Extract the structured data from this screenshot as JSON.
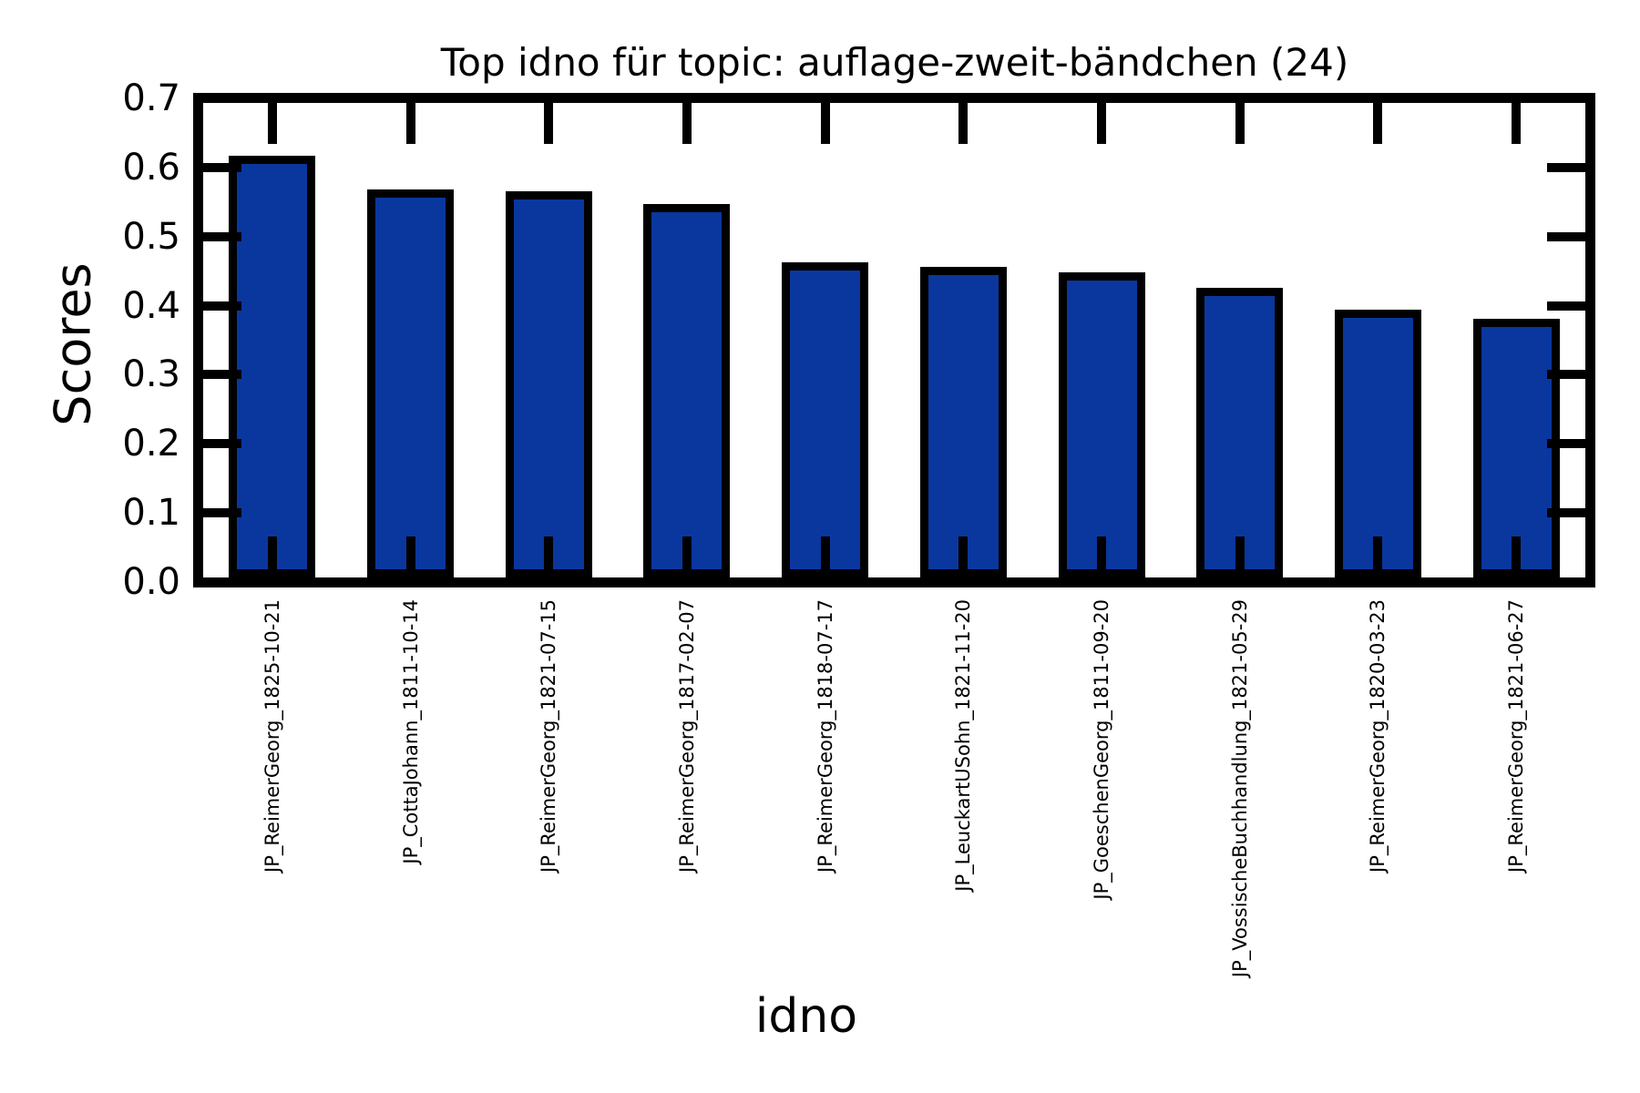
{
  "chart_data": {
    "type": "bar",
    "title": "Top idno für topic: auflage-zweit-bändchen (24)",
    "xlabel": "idno",
    "ylabel": "Scores",
    "ylim": [
      0.0,
      0.7
    ],
    "yticks": [
      0.0,
      0.1,
      0.2,
      0.3,
      0.4,
      0.5,
      0.6,
      0.7
    ],
    "grid": false,
    "legend": "none",
    "bar_color": "#0a379e",
    "bar_edge_color": "#000000",
    "tick_direction": "in",
    "categories": [
      "JP_ReimerGeorg_1825-10-21",
      "JP_CottaJohann_1811-10-14",
      "JP_ReimerGeorg_1821-07-15",
      "JP_ReimerGeorg_1817-02-07",
      "JP_ReimerGeorg_1818-07-17",
      "JP_LeuckartUSohn_1821-11-20",
      "JP_GoeschenGeorg_1811-09-20",
      "JP_VossischeBuchhandlung_1821-05-29",
      "JP_ReimerGeorg_1820-03-23",
      "JP_ReimerGeorg_1821-06-27"
    ],
    "values": [
      0.61,
      0.562,
      0.559,
      0.54,
      0.456,
      0.449,
      0.442,
      0.419,
      0.387,
      0.374
    ]
  }
}
